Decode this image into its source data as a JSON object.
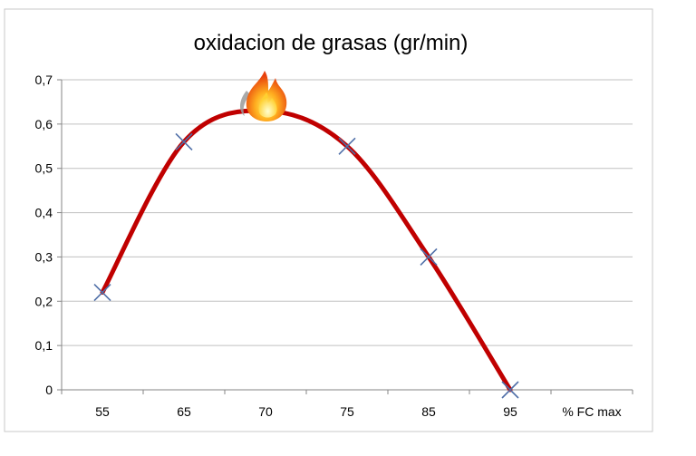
{
  "chart_data": {
    "type": "line",
    "title": "oxidacion de grasas (gr/min)",
    "xlabel": "% FC max",
    "ylabel": "",
    "categories": [
      "55",
      "65",
      "70",
      "75",
      "85",
      "95"
    ],
    "ylim": [
      0,
      0.7
    ],
    "yticks": [
      "0",
      "0,1",
      "0,2",
      "0,3",
      "0,4",
      "0,5",
      "0,6",
      "0,7"
    ],
    "grid": true,
    "series": [
      {
        "values": [
          0.22,
          0.56,
          0.63,
          0.55,
          0.3,
          0.0
        ]
      }
    ],
    "markers": [
      {
        "category": "55",
        "value": 0.22
      },
      {
        "category": "65",
        "value": 0.56
      },
      {
        "category": "75",
        "value": 0.55
      },
      {
        "category": "85",
        "value": 0.3
      },
      {
        "category": "95",
        "value": 0.0
      }
    ],
    "peak_icon": "flame-icon",
    "colors": {
      "line": "#c00000",
      "marker": "#4f6fa8",
      "grid": "#c0c0c0",
      "frame": "#c8c8c8"
    }
  }
}
